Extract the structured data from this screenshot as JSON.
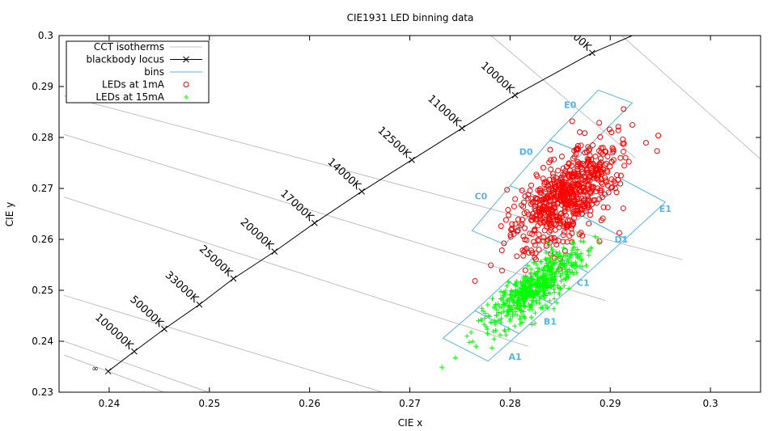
{
  "chart_data": {
    "type": "scatter",
    "title": "CIE1931 LED binning data",
    "xlabel": "CIE x",
    "ylabel": "CIE y",
    "xlim": [
      0.235,
      0.305
    ],
    "ylim": [
      0.23,
      0.3
    ],
    "xticks": [
      "0.24",
      "0.25",
      "0.26",
      "0.27",
      "0.28",
      "0.29",
      "0.3"
    ],
    "yticks": [
      "0.23",
      "0.24",
      "0.25",
      "0.26",
      "0.27",
      "0.28",
      "0.29",
      "0.3"
    ],
    "grid": false,
    "legend_position": "top-left",
    "legend": [
      {
        "label": "CCT isotherms",
        "style": "line",
        "color": "#c0c0c0"
      },
      {
        "label": "blackbody locus",
        "style": "line-x",
        "color": "#000000"
      },
      {
        "label": "bins",
        "style": "line",
        "color": "#56b4e9"
      },
      {
        "label": "LEDs at 1mA",
        "style": "circle",
        "color": "#ff0000"
      },
      {
        "label": "LEDs at 15mA",
        "style": "plus",
        "color": "#00ff00"
      }
    ],
    "colors": {
      "isotherm": "#c0c0c0",
      "locus": "#000000",
      "bins": "#56b4e9",
      "led_1mA": "#ff0000",
      "led_15mA": "#00ff00"
    },
    "blackbody_locus": [
      {
        "x": 0.2399,
        "y": 0.2341
      },
      {
        "x": 0.2425,
        "y": 0.238,
        "label": "100000K"
      },
      {
        "x": 0.2455,
        "y": 0.2424,
        "label": "50000K"
      },
      {
        "x": 0.249,
        "y": 0.2472,
        "label": "33000K"
      },
      {
        "x": 0.2524,
        "y": 0.2523,
        "label": "25000K"
      },
      {
        "x": 0.2565,
        "y": 0.2576,
        "label": "20000K"
      },
      {
        "x": 0.2605,
        "y": 0.2632,
        "label": "17000K"
      },
      {
        "x": 0.2652,
        "y": 0.2694,
        "label": "14000K"
      },
      {
        "x": 0.2702,
        "y": 0.2756,
        "label": "12500K"
      },
      {
        "x": 0.2752,
        "y": 0.2818,
        "label": "11000K"
      },
      {
        "x": 0.2805,
        "y": 0.2883,
        "label": "10000K"
      },
      {
        "x": 0.2882,
        "y": 0.2966,
        "label": "9000K"
      },
      {
        "x": 0.2922,
        "y": 0.3
      }
    ],
    "infinity_label": {
      "x": 0.2386,
      "y": 0.2348,
      "text": "∞"
    },
    "isotherms": [
      [
        [
          0.2355,
          0.2373
        ],
        [
          0.255,
          0.223
        ]
      ],
      [
        [
          0.2355,
          0.24
        ],
        [
          0.26,
          0.223
        ]
      ],
      [
        [
          0.2355,
          0.249
        ],
        [
          0.279,
          0.223
        ]
      ],
      [
        [
          0.2355,
          0.2683
        ],
        [
          0.2818,
          0.239
        ]
      ],
      [
        [
          0.2355,
          0.2806
        ],
        [
          0.2895,
          0.248
        ]
      ],
      [
        [
          0.2355,
          0.2882
        ],
        [
          0.2972,
          0.256
        ]
      ],
      [
        [
          0.2775,
          0.301
        ],
        [
          0.2925,
          0.276
        ]
      ],
      [
        [
          0.29,
          0.302
        ],
        [
          0.306,
          0.274
        ]
      ]
    ],
    "bins": [
      {
        "name": "A1",
        "polygon": [
          [
            0.2733,
            0.2406
          ],
          [
            0.2778,
            0.2361
          ],
          [
            0.2809,
            0.2415
          ],
          [
            0.2765,
            0.246
          ]
        ],
        "label_x": 0.2805,
        "label_y": 0.237
      },
      {
        "name": "B1",
        "polygon": [
          [
            0.2765,
            0.246
          ],
          [
            0.2809,
            0.2415
          ],
          [
            0.2842,
            0.2473
          ],
          [
            0.2797,
            0.2518
          ]
        ],
        "label_x": 0.284,
        "label_y": 0.2439
      },
      {
        "name": "C1",
        "polygon": [
          [
            0.2797,
            0.2518
          ],
          [
            0.2842,
            0.2473
          ],
          [
            0.2878,
            0.2535
          ],
          [
            0.2833,
            0.258
          ]
        ],
        "label_x": 0.2873,
        "label_y": 0.2515
      },
      {
        "name": "D1",
        "polygon": [
          [
            0.2833,
            0.258
          ],
          [
            0.2878,
            0.2535
          ],
          [
            0.2915,
            0.2601
          ],
          [
            0.2872,
            0.2646
          ]
        ],
        "label_x": 0.2911,
        "label_y": 0.26
      },
      {
        "name": "E1",
        "polygon": [
          [
            0.2872,
            0.2646
          ],
          [
            0.2915,
            0.2601
          ],
          [
            0.2955,
            0.2673
          ],
          [
            0.2912,
            0.2718
          ]
        ],
        "label_x": 0.2955,
        "label_y": 0.266
      },
      {
        "name": "C0",
        "polygon": [
          [
            0.2762,
            0.2617
          ],
          [
            0.28,
            0.2705
          ],
          [
            0.2833,
            0.268
          ],
          [
            0.2795,
            0.259
          ]
        ],
        "label_x": 0.2771,
        "label_y": 0.2685
      },
      {
        "name": "D0",
        "polygon": [
          [
            0.28,
            0.2705
          ],
          [
            0.284,
            0.2795
          ],
          [
            0.2872,
            0.277
          ],
          [
            0.2833,
            0.268
          ]
        ],
        "label_x": 0.2816,
        "label_y": 0.2772
      },
      {
        "name": "E0",
        "polygon": [
          [
            0.284,
            0.2795
          ],
          [
            0.2888,
            0.2893
          ],
          [
            0.2922,
            0.2868
          ],
          [
            0.2872,
            0.277
          ]
        ],
        "label_x": 0.286,
        "label_y": 0.2864
      }
    ],
    "series": [
      {
        "name": "LEDs at 1mA",
        "marker": "circle",
        "color": "#ff0000",
        "cluster": {
          "center": [
            0.2858,
            0.2685
          ],
          "major_sd": 0.0062,
          "minor_sd": 0.0019,
          "angle_deg": 56,
          "count": 650
        },
        "outliers": [
          [
            0.2913,
            0.2661
          ],
          [
            0.2908,
            0.2821
          ],
          [
            0.2908,
            0.2814
          ],
          [
            0.2889,
            0.2829
          ],
          [
            0.2796,
            0.2638
          ],
          [
            0.2802,
            0.262
          ],
          [
            0.2791,
            0.2626
          ],
          [
            0.2798,
            0.2658
          ],
          [
            0.2812,
            0.2696
          ],
          [
            0.2802,
            0.263
          ],
          [
            0.2825,
            0.2589
          ],
          [
            0.285,
            0.2562
          ],
          [
            0.284,
            0.2776
          ],
          [
            0.2862,
            0.2832
          ]
        ]
      },
      {
        "name": "LEDs at 15mA",
        "marker": "plus",
        "color": "#00ff00",
        "cluster": {
          "center": [
            0.2825,
            0.2506
          ],
          "major_sd": 0.005,
          "minor_sd": 0.0012,
          "angle_deg": 48,
          "count": 560
        },
        "outliers": [
          [
            0.2732,
            0.2349
          ],
          [
            0.2757,
            0.241
          ],
          [
            0.2766,
            0.239
          ],
          [
            0.2774,
            0.2433
          ],
          [
            0.2795,
            0.242
          ],
          [
            0.2863,
            0.255
          ],
          [
            0.2876,
            0.2549
          ],
          [
            0.2865,
            0.2574
          ],
          [
            0.2837,
            0.2592
          ]
        ]
      }
    ]
  }
}
